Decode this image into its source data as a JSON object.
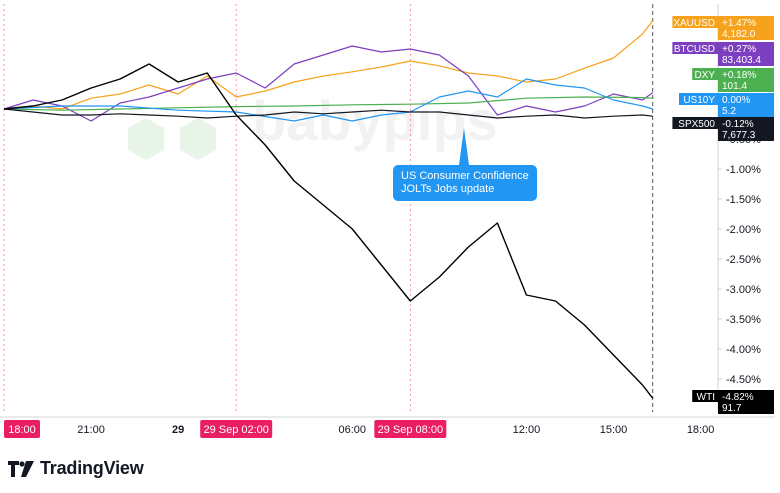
{
  "chart_data": {
    "type": "line",
    "title": "",
    "xlabel": "",
    "ylabel": "",
    "x_ticks": [
      {
        "label": "21:00",
        "bold": false,
        "t": 3
      },
      {
        "label": "29",
        "bold": true,
        "t": 6
      },
      {
        "label": "06:00",
        "bold": false,
        "t": 12
      },
      {
        "label": "12:00",
        "bold": false,
        "t": 18
      },
      {
        "label": "15:00",
        "bold": false,
        "t": 21
      },
      {
        "label": "18:00",
        "bold": false,
        "t": 24
      }
    ],
    "x_highlights": [
      {
        "label": "18:00",
        "t": 0
      },
      {
        "label": "29 Sep   02:00",
        "t": 8
      },
      {
        "label": "29 Sep   08:00",
        "t": 14
      }
    ],
    "x_range_hours": [
      0,
      24.6
    ],
    "session_markers_t": [
      0,
      8,
      14
    ],
    "cursor_t": 22.35,
    "y_unit": "%",
    "ylim": [
      -5.05,
      1.75
    ],
    "y_ticks": [
      "-0.50%",
      "-1.00%",
      "-1.50%",
      "-2.00%",
      "-2.50%",
      "-3.00%",
      "-3.50%",
      "-4.00%",
      "-4.50%"
    ],
    "y_tick_values": [
      -0.5,
      -1.0,
      -1.5,
      -2.0,
      -2.5,
      -3.0,
      -3.5,
      -4.0,
      -4.5
    ],
    "series": [
      {
        "name": "XAUUSD",
        "color": "#f7a21b",
        "change": "+1.47%",
        "price": "4,182.0",
        "points": [
          [
            0,
            0
          ],
          [
            1,
            0.05
          ],
          [
            2,
            0.0
          ],
          [
            3,
            0.18
          ],
          [
            4,
            0.25
          ],
          [
            5,
            0.4
          ],
          [
            6,
            0.25
          ],
          [
            7,
            0.55
          ],
          [
            8,
            0.2
          ],
          [
            9,
            0.3
          ],
          [
            10,
            0.45
          ],
          [
            11,
            0.55
          ],
          [
            12,
            0.62
          ],
          [
            13,
            0.7
          ],
          [
            14,
            0.8
          ],
          [
            15,
            0.72
          ],
          [
            16,
            0.6
          ],
          [
            17,
            0.55
          ],
          [
            18,
            0.45
          ],
          [
            19,
            0.5
          ],
          [
            20,
            0.68
          ],
          [
            21,
            0.85
          ],
          [
            22,
            1.25
          ],
          [
            22.35,
            1.47
          ]
        ]
      },
      {
        "name": "BTCUSD",
        "color": "#7b3fbf",
        "change": "+0.27%",
        "price": "83,403.4",
        "points": [
          [
            0,
            0
          ],
          [
            1,
            0.15
          ],
          [
            2,
            0.05
          ],
          [
            3,
            -0.2
          ],
          [
            4,
            0.1
          ],
          [
            5,
            0.2
          ],
          [
            6,
            0.35
          ],
          [
            7,
            0.5
          ],
          [
            8,
            0.6
          ],
          [
            9,
            0.35
          ],
          [
            10,
            0.75
          ],
          [
            11,
            0.9
          ],
          [
            12,
            1.05
          ],
          [
            13,
            0.95
          ],
          [
            14,
            1.0
          ],
          [
            15,
            0.9
          ],
          [
            16,
            0.55
          ],
          [
            17,
            -0.1
          ],
          [
            18,
            0.05
          ],
          [
            19,
            -0.05
          ],
          [
            20,
            0.05
          ],
          [
            21,
            0.25
          ],
          [
            22,
            0.15
          ],
          [
            22.35,
            0.27
          ]
        ]
      },
      {
        "name": "DXY",
        "color": "#4caf50",
        "change": "+0.18%",
        "price": "101.4",
        "points": [
          [
            0,
            0
          ],
          [
            2,
            -0.02
          ],
          [
            4,
            0.0
          ],
          [
            6,
            0.02
          ],
          [
            8,
            0.04
          ],
          [
            10,
            0.05
          ],
          [
            12,
            0.07
          ],
          [
            14,
            0.08
          ],
          [
            16,
            0.1
          ],
          [
            18,
            0.18
          ],
          [
            20,
            0.2
          ],
          [
            22,
            0.19
          ],
          [
            22.35,
            0.18
          ]
        ]
      },
      {
        "name": "US10Y",
        "color": "#2196f3",
        "change": "0.00%",
        "price": "5.2",
        "points": [
          [
            0,
            0
          ],
          [
            2,
            0.05
          ],
          [
            4,
            0.05
          ],
          [
            6,
            -0.02
          ],
          [
            8,
            -0.05
          ],
          [
            10,
            -0.2
          ],
          [
            11,
            -0.1
          ],
          [
            12,
            -0.2
          ],
          [
            13,
            -0.1
          ],
          [
            14,
            -0.05
          ],
          [
            15,
            0.2
          ],
          [
            16,
            0.3
          ],
          [
            17,
            0.2
          ],
          [
            18,
            0.5
          ],
          [
            19,
            0.4
          ],
          [
            20,
            0.35
          ],
          [
            21,
            0.15
          ],
          [
            22,
            0.05
          ],
          [
            22.35,
            0.0
          ]
        ]
      },
      {
        "name": "SPX500",
        "color": "#131722",
        "change": "-0.12%",
        "price": "7,677.3",
        "points": [
          [
            0,
            0
          ],
          [
            1,
            -0.05
          ],
          [
            2,
            -0.1
          ],
          [
            3,
            -0.1
          ],
          [
            4,
            -0.08
          ],
          [
            5,
            -0.1
          ],
          [
            6,
            -0.12
          ],
          [
            7,
            -0.15
          ],
          [
            8,
            -0.12
          ],
          [
            9,
            -0.1
          ],
          [
            10,
            -0.05
          ],
          [
            11,
            -0.08
          ],
          [
            12,
            -0.05
          ],
          [
            13,
            -0.02
          ],
          [
            14,
            -0.05
          ],
          [
            15,
            -0.05
          ],
          [
            16,
            -0.1
          ],
          [
            17,
            -0.15
          ],
          [
            18,
            -0.12
          ],
          [
            19,
            -0.1
          ],
          [
            20,
            -0.15
          ],
          [
            21,
            -0.12
          ],
          [
            22,
            -0.1
          ],
          [
            22.35,
            -0.12
          ]
        ]
      },
      {
        "name": "WTI",
        "color": "#000000",
        "change": "-4.82%",
        "price": "91.7",
        "points": [
          [
            0,
            0
          ],
          [
            1,
            0.05
          ],
          [
            2,
            0.15
          ],
          [
            3,
            0.35
          ],
          [
            4,
            0.5
          ],
          [
            5,
            0.75
          ],
          [
            6,
            0.45
          ],
          [
            7,
            0.6
          ],
          [
            8,
            -0.1
          ],
          [
            9,
            -0.6
          ],
          [
            10,
            -1.2
          ],
          [
            11,
            -1.6
          ],
          [
            12,
            -2.0
          ],
          [
            13,
            -2.6
          ],
          [
            14,
            -3.2
          ],
          [
            15,
            -2.8
          ],
          [
            16,
            -2.3
          ],
          [
            17,
            -1.9
          ],
          [
            18,
            -3.1
          ],
          [
            19,
            -3.2
          ],
          [
            20,
            -3.6
          ],
          [
            21,
            -4.1
          ],
          [
            22,
            -4.6
          ],
          [
            22.35,
            -4.82
          ]
        ]
      }
    ],
    "annotation": {
      "lines": [
        "US Consumer Confidence",
        "JOLTs Jobs update"
      ],
      "t": 16.5
    },
    "grid": false,
    "legend": "right-axis tags"
  },
  "branding": {
    "tradingview": "TradingView",
    "watermark": "babypips"
  },
  "colors": {
    "highlight": "#e91e63",
    "axis": "#d1d4dc",
    "text": "#131722"
  }
}
